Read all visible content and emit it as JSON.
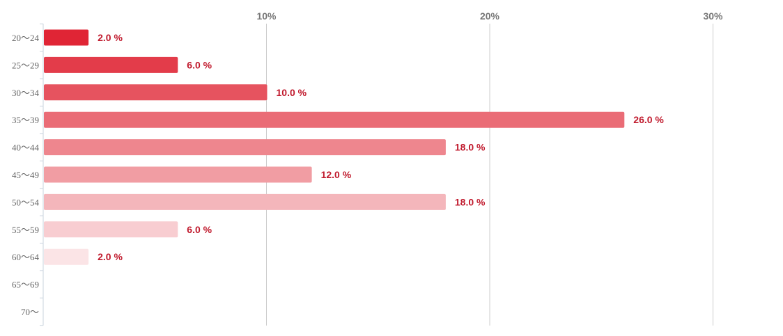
{
  "chart_data": {
    "type": "bar",
    "orientation": "horizontal",
    "categories": [
      "20〜24",
      "25〜29",
      "30〜34",
      "35〜39",
      "40〜44",
      "45〜49",
      "50〜54",
      "55〜59",
      "60〜64",
      "65〜69",
      "70〜"
    ],
    "values": [
      2.0,
      6.0,
      10.0,
      26.0,
      18.0,
      12.0,
      18.0,
      6.0,
      2.0,
      null,
      null
    ],
    "data_labels": [
      "2.0 %",
      "6.0 %",
      "10.0 %",
      "26.0 %",
      "18.0 %",
      "12.0 %",
      "18.0 %",
      "6.0 %",
      "2.0 %",
      "",
      ""
    ],
    "x_ticks": [
      10,
      20,
      30
    ],
    "x_tick_labels": [
      "10%",
      "20%",
      "30%"
    ],
    "xlim": [
      0,
      33.5
    ],
    "grid": true,
    "x_axis_position": "top",
    "title": "",
    "xlabel": "",
    "ylabel": "",
    "bar_colors": [
      "#e02535",
      "#e33c4a",
      "#e6535f",
      "#ea6c76",
      "#ee868e",
      "#f19da3",
      "#f4b6bb",
      "#f8cdd1",
      "#fbe4e6",
      "#fdf0f1",
      "#fdf0f1"
    ],
    "label_color": "#c0192c"
  }
}
